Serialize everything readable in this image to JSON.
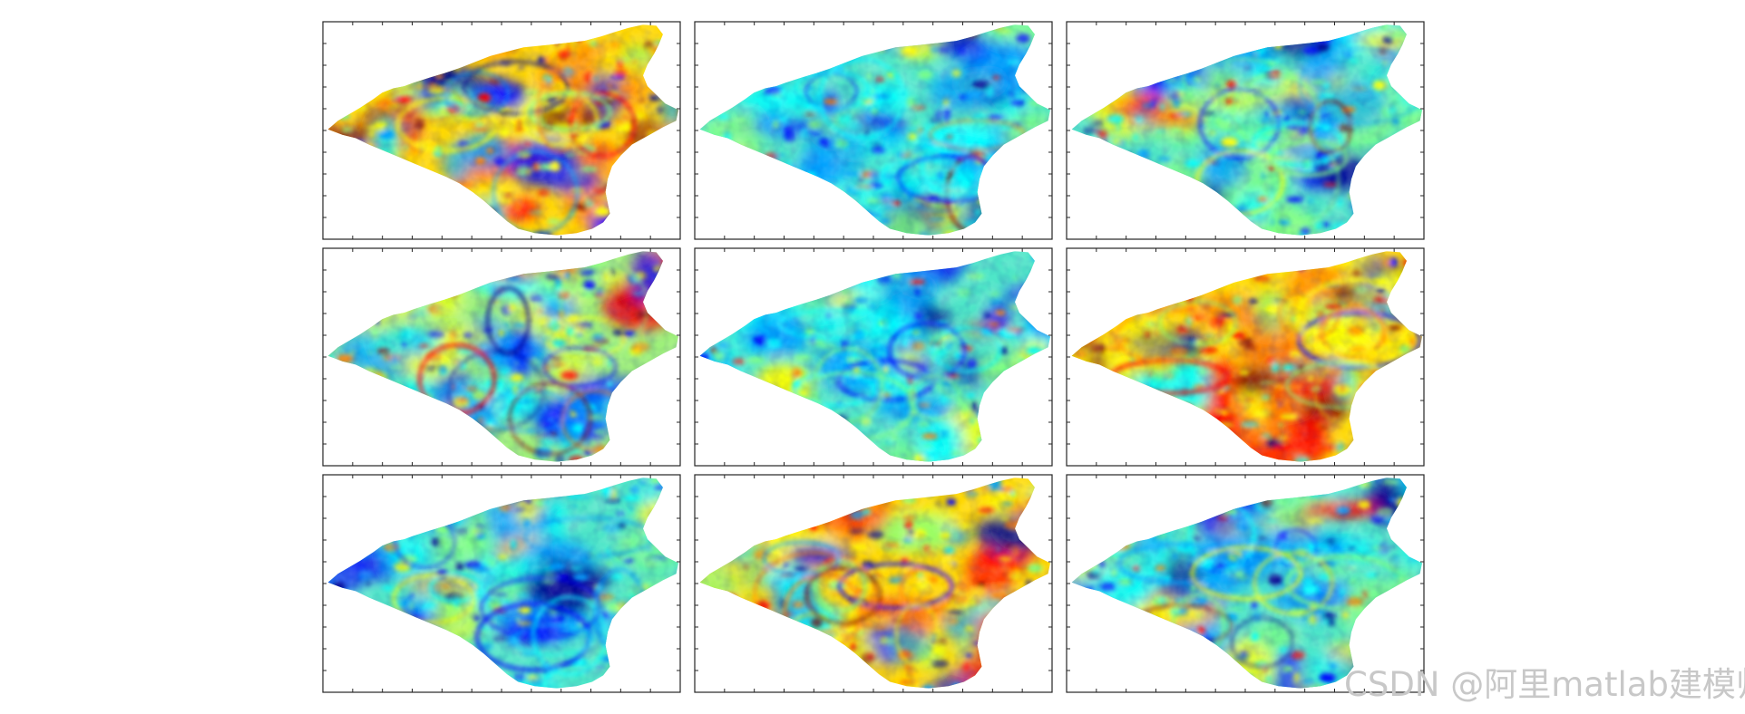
{
  "figure": {
    "rows": 3,
    "cols": 3,
    "panels": [
      {
        "id": 1,
        "dominant": "warm"
      },
      {
        "id": 2,
        "dominant": "cool"
      },
      {
        "id": 3,
        "dominant": "cool"
      },
      {
        "id": 4,
        "dominant": "mixed"
      },
      {
        "id": 5,
        "dominant": "cool"
      },
      {
        "id": 6,
        "dominant": "warm"
      },
      {
        "id": 7,
        "dominant": "cool"
      },
      {
        "id": 8,
        "dominant": "warm"
      },
      {
        "id": 9,
        "dominant": "cool"
      }
    ],
    "colormap": [
      "#00008f",
      "#0000ff",
      "#00a0ff",
      "#00ffff",
      "#80ff80",
      "#ffff00",
      "#ff8000",
      "#ff0000",
      "#800000"
    ]
  },
  "watermark": {
    "text": "CSDN @阿里matlab建模师"
  }
}
